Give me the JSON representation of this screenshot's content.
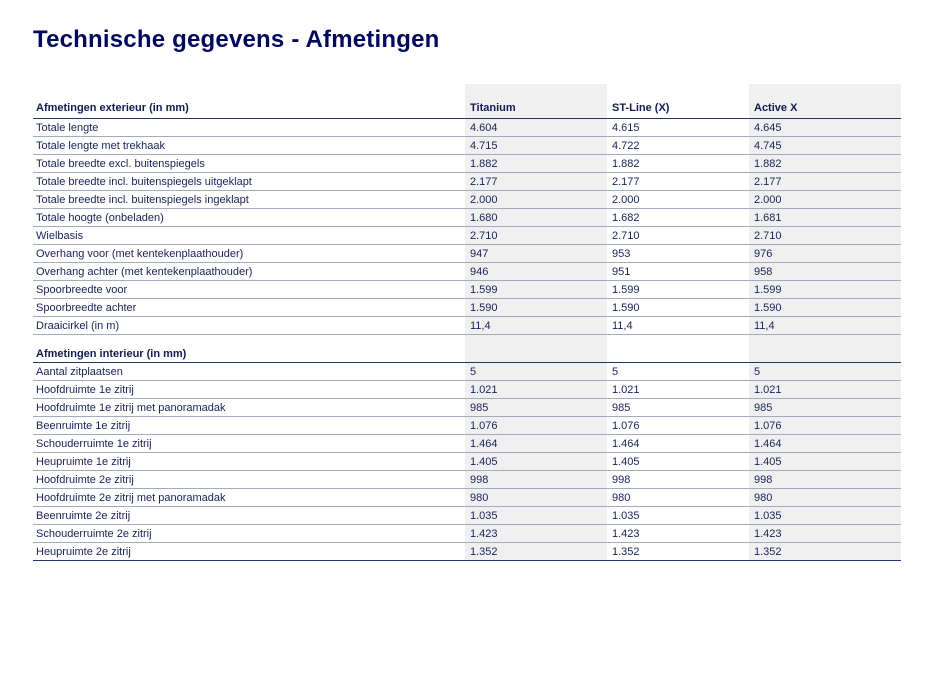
{
  "page": {
    "title": "Technische gegevens - Afmetingen"
  },
  "colors": {
    "brand_navy": "#00095b",
    "text_navy": "#1a2157",
    "column_shade": "#f0f0f1",
    "row_line": "#a6abba",
    "section_line": "#2c3467"
  },
  "table": {
    "columns": [
      "Titanium",
      "ST-Line (X)",
      "Active X"
    ],
    "sections": [
      {
        "header": "Afmetingen exterieur (in mm)",
        "rows": [
          {
            "label": "Totale lengte",
            "values": [
              "4.604",
              "4.615",
              "4.645"
            ]
          },
          {
            "label": "Totale lengte met trekhaak",
            "values": [
              "4.715",
              "4.722",
              "4.745"
            ]
          },
          {
            "label": "Totale breedte excl. buitenspiegels",
            "values": [
              "1.882",
              "1.882",
              "1.882"
            ]
          },
          {
            "label": "Totale breedte incl. buitenspiegels uitgeklapt",
            "values": [
              "2.177",
              "2.177",
              "2.177"
            ]
          },
          {
            "label": "Totale breedte incl. buitenspiegels ingeklapt",
            "values": [
              "2.000",
              "2.000",
              "2.000"
            ]
          },
          {
            "label": "Totale hoogte (onbeladen)",
            "values": [
              "1.680",
              "1.682",
              "1.681"
            ]
          },
          {
            "label": "Wielbasis",
            "values": [
              "2.710",
              "2.710",
              "2.710"
            ]
          },
          {
            "label": "Overhang voor (met kentekenplaathouder)",
            "values": [
              "947",
              "953",
              "976"
            ]
          },
          {
            "label": "Overhang achter (met kentekenplaathouder)",
            "values": [
              "946",
              "951",
              "958"
            ]
          },
          {
            "label": "Spoorbreedte voor",
            "values": [
              "1.599",
              "1.599",
              "1.599"
            ]
          },
          {
            "label": "Spoorbreedte achter",
            "values": [
              "1.590",
              "1.590",
              "1.590"
            ]
          },
          {
            "label": "Draaicirkel (in m)",
            "values": [
              "11,4",
              "11,4",
              "11,4"
            ]
          }
        ]
      },
      {
        "header": "Afmetingen interieur (in mm)",
        "rows": [
          {
            "label": "Aantal zitplaatsen",
            "values": [
              "5",
              "5",
              "5"
            ]
          },
          {
            "label": "Hoofdruimte 1e zitrij",
            "values": [
              "1.021",
              "1.021",
              "1.021"
            ]
          },
          {
            "label": "Hoofdruimte 1e zitrij met panoramadak",
            "values": [
              "985",
              "985",
              "985"
            ]
          },
          {
            "label": "Beenruimte 1e zitrij",
            "values": [
              "1.076",
              "1.076",
              "1.076"
            ]
          },
          {
            "label": "Schouderruimte 1e zitrij",
            "values": [
              "1.464",
              "1.464",
              "1.464"
            ]
          },
          {
            "label": "Heupruimte 1e zitrij",
            "values": [
              "1.405",
              "1.405",
              "1.405"
            ]
          },
          {
            "label": "Hoofdruimte 2e zitrij",
            "values": [
              "998",
              "998",
              "998"
            ]
          },
          {
            "label": "Hoofdruimte 2e zitrij met panoramadak",
            "values": [
              "980",
              "980",
              "980"
            ]
          },
          {
            "label": "Beenruimte 2e zitrij",
            "values": [
              "1.035",
              "1.035",
              "1.035"
            ]
          },
          {
            "label": "Schouderruimte 2e zitrij",
            "values": [
              "1.423",
              "1.423",
              "1.423"
            ]
          },
          {
            "label": "Heupruimte 2e zitrij",
            "values": [
              "1.352",
              "1.352",
              "1.352"
            ]
          }
        ]
      }
    ]
  }
}
